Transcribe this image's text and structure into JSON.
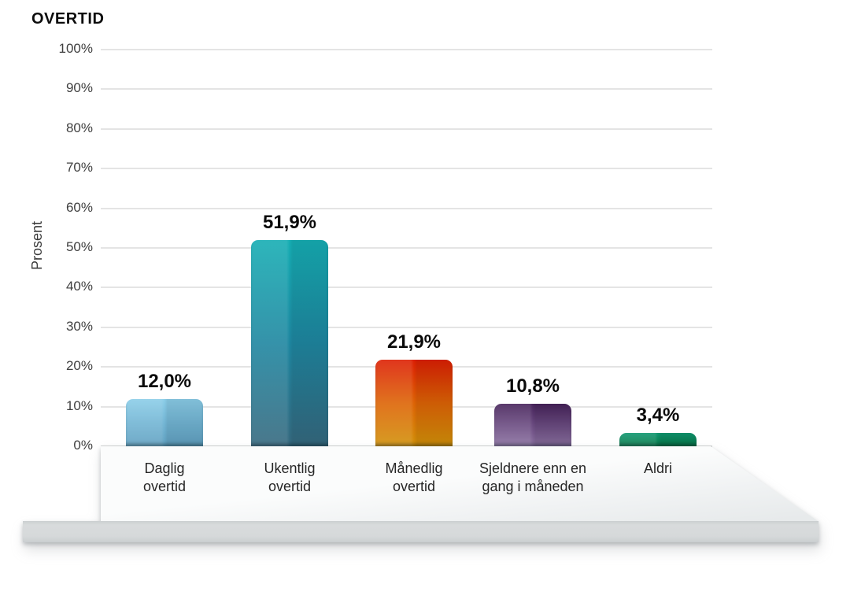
{
  "page": {
    "background": "#ffffff"
  },
  "chart_data": {
    "type": "bar",
    "title": "OVERTID",
    "ylabel": "Prosent",
    "xlabel": "",
    "categories": [
      "Daglig overtid",
      "Ukentlig overtid",
      "Månedlig overtid",
      "Sjeldnere enn en gang i måneden",
      "Aldri"
    ],
    "values": [
      12.0,
      51.9,
      21.9,
      10.8,
      3.4
    ],
    "grid": true,
    "legend": false,
    "y_axis": {
      "min": 0,
      "max": 100,
      "ticks": [
        {
          "value": 100,
          "label": "100%"
        },
        {
          "value": 90,
          "label": "90%"
        },
        {
          "value": 80,
          "label": "80%"
        },
        {
          "value": 70,
          "label": "70%"
        },
        {
          "value": 60,
          "label": "60%"
        },
        {
          "value": 50,
          "label": "50%"
        },
        {
          "value": 40,
          "label": "40%"
        },
        {
          "value": 30,
          "label": "30%"
        },
        {
          "value": 20,
          "label": "20%"
        },
        {
          "value": 10,
          "label": "10%"
        },
        {
          "value": 0,
          "label": "0%"
        }
      ]
    },
    "bars": [
      {
        "key": "daglig-overtid",
        "label_lines": [
          "Daglig",
          "overtid"
        ],
        "value": 12.0,
        "value_label": "12,0%",
        "color_top": "#8bcde8",
        "color_mid": "#72b5d4",
        "color_bottom": "#5f9fbf"
      },
      {
        "key": "ukentlig-overtid",
        "label_lines": [
          "Ukentlig",
          "overtid"
        ],
        "value": 51.9,
        "value_label": "51,9%",
        "color_top": "#15adb3",
        "color_mid": "#1e86a0",
        "color_bottom": "#35687e"
      },
      {
        "key": "manedlig-overtid",
        "label_lines": [
          "Månedlig",
          "overtid"
        ],
        "value": 21.9,
        "value_label": "21,9%",
        "color_top": "#dc1f03",
        "color_mid": "#dd6305",
        "color_bottom": "#d29109"
      },
      {
        "key": "sjeldnere",
        "label_lines": [
          "Sjeldnere enn en",
          "gang i måneden"
        ],
        "value": 10.8,
        "value_label": "10,8%",
        "color_top": "#46235a",
        "color_mid": "#6a4a80",
        "color_bottom": "#8b71a1"
      },
      {
        "key": "aldri",
        "label_lines": [
          "Aldri"
        ],
        "value": 3.4,
        "value_label": "3,4%",
        "color_top": "#0f9770",
        "color_mid": "#0b885c",
        "color_bottom": "#087c4b"
      }
    ],
    "platform_colors": {
      "top_surface": "#f4f6f6",
      "front_face": "#d6d9da"
    }
  }
}
